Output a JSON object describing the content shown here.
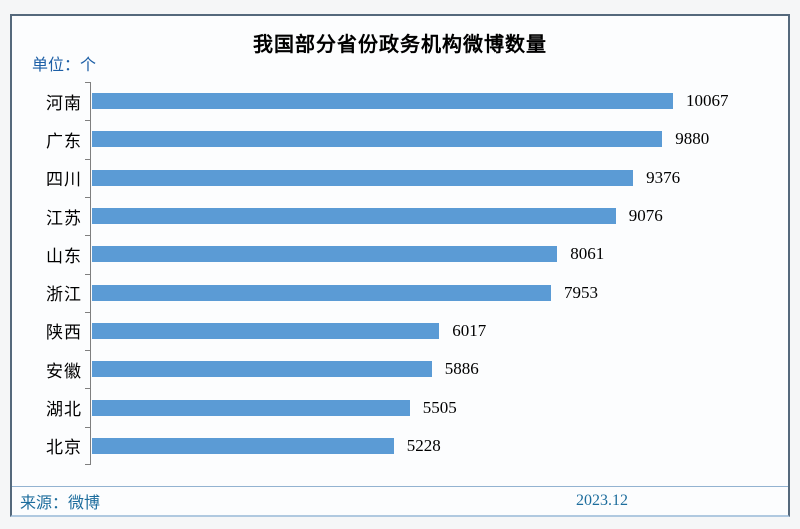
{
  "chart": {
    "title": "我国部分省份政务机构微博数量",
    "unit_label": "单位：个",
    "source_label": "来源：微博",
    "date_label": "2023.12",
    "colors": {
      "bar": "#5b9bd5",
      "axis": "#7f7f7f",
      "unit_text": "#1d5fa6",
      "footer_text": "#1d6d9d",
      "frame_border": "#55697c",
      "bottom_line": "#b0c9e0"
    }
  },
  "chart_data": {
    "type": "bar",
    "orientation": "horizontal",
    "title": "我国部分省份政务机构微博数量",
    "unit": "个",
    "categories": [
      "河南",
      "广东",
      "四川",
      "江苏",
      "山东",
      "浙江",
      "陕西",
      "安徽",
      "湖北",
      "北京"
    ],
    "values": [
      10067,
      9880,
      9376,
      9076,
      8061,
      7953,
      6017,
      5886,
      5505,
      5228
    ],
    "xlabel": "",
    "ylabel": "",
    "xlim": [
      0,
      10400
    ],
    "grid": false,
    "legend": false,
    "value_labels": "end-of-bar",
    "source": "微博",
    "period": "2023.12"
  }
}
